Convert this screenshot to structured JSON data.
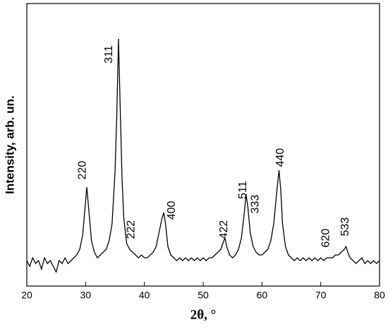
{
  "chart_data": {
    "type": "line",
    "xlabel": "2θ, °",
    "ylabel": "Intensity, arb. un.",
    "xlim": [
      20,
      80
    ],
    "xticks": [
      20,
      30,
      40,
      50,
      60,
      70,
      80
    ],
    "ylim": [
      0,
      100
    ],
    "series": [
      {
        "color": "#000000",
        "x": [
          20,
          20.5,
          21,
          21.5,
          22,
          22.5,
          23,
          23.5,
          24,
          24.5,
          25,
          25.5,
          26,
          26.5,
          27,
          27.5,
          28,
          28.5,
          29,
          29.5,
          30,
          30.2,
          30.5,
          31,
          31.5,
          32,
          32.5,
          33,
          33.5,
          34,
          34.5,
          35,
          35.3,
          35.6,
          35.9,
          36.2,
          36.5,
          37,
          37.5,
          38,
          38.5,
          39,
          39.5,
          40,
          40.5,
          41,
          41.5,
          42,
          42.5,
          43,
          43.3,
          43.6,
          44,
          44.5,
          45,
          45.5,
          46,
          46.5,
          47,
          47.5,
          48,
          48.5,
          49,
          49.5,
          50,
          50.5,
          51,
          51.5,
          52,
          52.5,
          53,
          53.5,
          53.7,
          54,
          54.5,
          55,
          55.5,
          56,
          56.5,
          57,
          57.3,
          57.6,
          58,
          58.5,
          59,
          59.5,
          60,
          60.5,
          61,
          61.5,
          62,
          62.5,
          62.9,
          63.2,
          63.5,
          64,
          64.5,
          65,
          65.5,
          66,
          66.5,
          67,
          67.5,
          68,
          68.5,
          69,
          69.5,
          70,
          70.5,
          71,
          71.5,
          72,
          72.5,
          73,
          73.5,
          74,
          74.3,
          74.6,
          75,
          75.5,
          76,
          76.5,
          77,
          77.5,
          78,
          78.5,
          79,
          79.5,
          80
        ],
        "values": [
          9,
          7,
          10,
          8,
          9,
          6,
          10,
          8,
          9,
          7,
          5,
          9,
          8,
          10,
          8,
          9,
          10,
          11,
          13,
          18,
          30,
          35,
          28,
          16,
          12,
          10,
          11,
          12,
          13,
          16,
          22,
          40,
          60,
          87.5,
          62,
          38,
          24,
          15,
          13,
          12,
          11,
          10,
          11,
          10,
          10,
          11,
          12,
          14,
          19,
          24,
          26,
          22,
          14,
          11,
          10,
          9,
          10,
          9,
          10,
          9,
          10,
          9,
          10,
          9,
          10,
          9,
          10,
          10,
          11,
          12,
          13,
          16,
          17,
          14,
          11,
          10,
          11,
          13,
          17,
          26,
          32.5,
          28,
          19,
          14,
          12,
          11,
          11,
          12,
          13,
          16,
          22,
          33,
          41,
          34,
          22,
          14,
          11,
          10,
          9,
          10,
          9,
          10,
          9,
          10,
          9,
          10,
          9,
          10,
          9,
          10,
          10,
          10,
          11,
          11,
          12,
          13,
          14,
          12,
          10,
          9,
          8,
          9,
          10,
          8,
          9,
          8,
          9,
          8,
          9
        ]
      }
    ],
    "annotations": [
      {
        "text": "220",
        "x": 29.5,
        "y": 41
      },
      {
        "text": "311",
        "x": 34.0,
        "y": 82
      },
      {
        "text": "222",
        "x": 37.8,
        "y": 20
      },
      {
        "text": "400",
        "x": 44.7,
        "y": 26.8
      },
      {
        "text": "422",
        "x": 53.6,
        "y": 20
      },
      {
        "text": "511",
        "x": 56.8,
        "y": 34
      },
      {
        "text": "333",
        "x": 58.9,
        "y": 29
      },
      {
        "text": "440",
        "x": 63.2,
        "y": 45.5
      },
      {
        "text": "620",
        "x": 70.9,
        "y": 17
      },
      {
        "text": "533",
        "x": 74.2,
        "y": 21
      }
    ]
  }
}
